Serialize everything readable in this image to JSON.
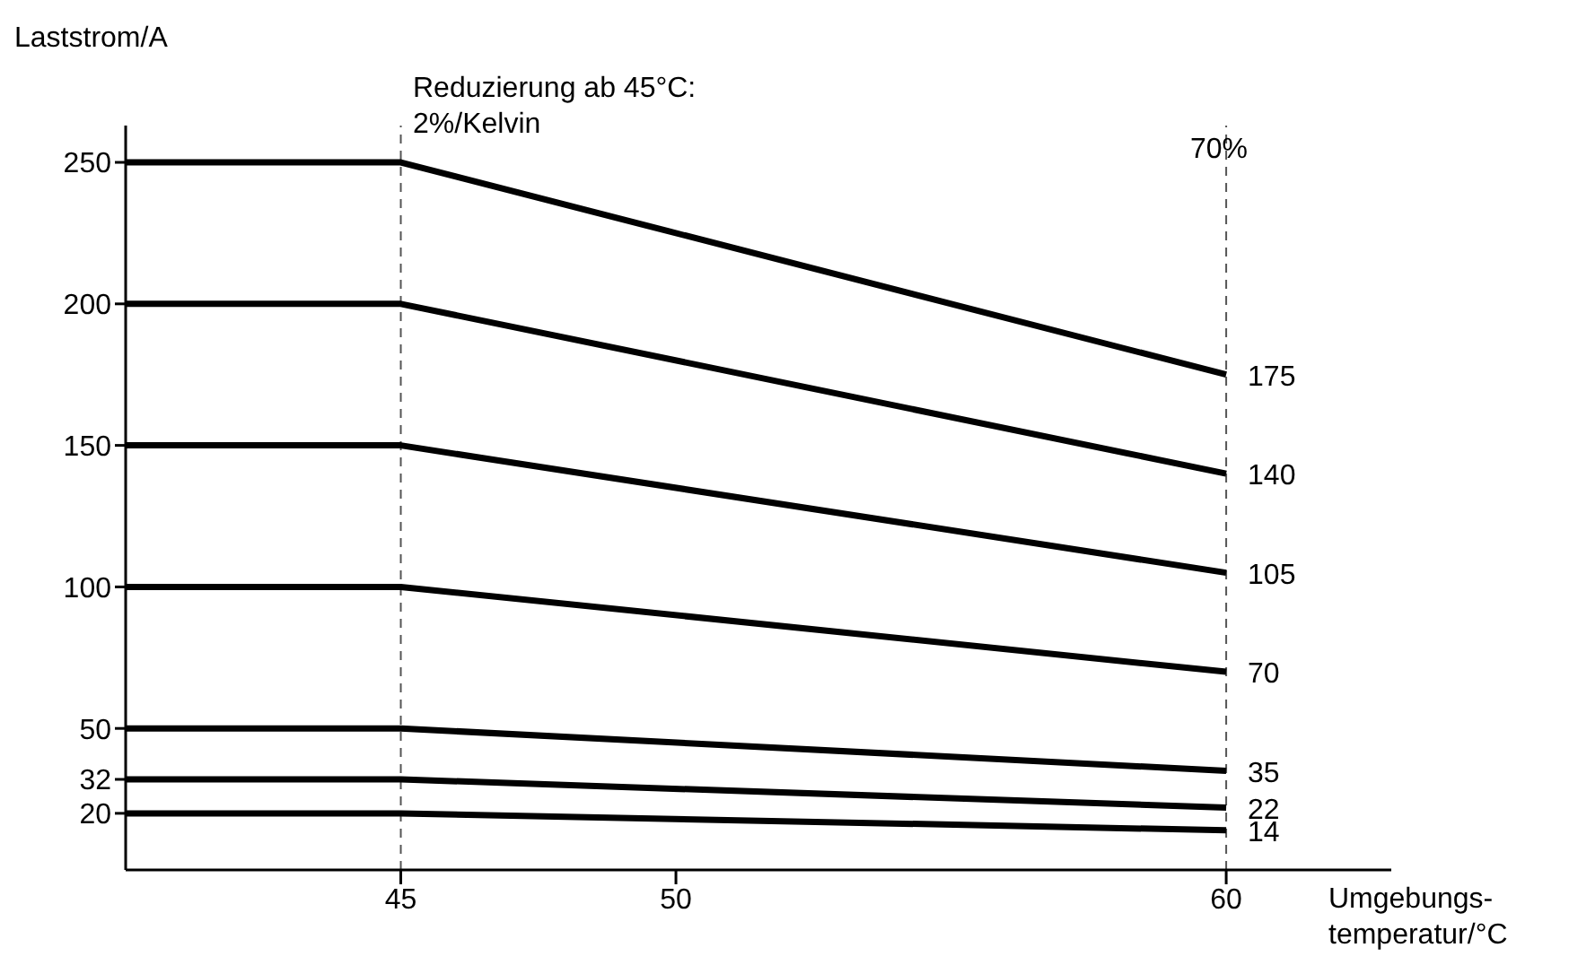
{
  "chart_data": {
    "type": "line",
    "xlabel": "Umgebungs-\ntemperatur/°C",
    "ylabel": "Laststrom/A",
    "annotations": [
      "Reduzierung ab 45°C:\n2%/Kelvin",
      "70%"
    ],
    "x": [
      40,
      45,
      60
    ],
    "series": [
      {
        "color": "#000000",
        "values": [
          250,
          250,
          175
        ],
        "value_labels": [
          null,
          null,
          "175"
        ]
      },
      {
        "color": "#000000",
        "values": [
          200,
          200,
          140
        ],
        "value_labels": [
          null,
          null,
          "140"
        ]
      },
      {
        "color": "#000000",
        "values": [
          150,
          150,
          105
        ],
        "value_labels": [
          null,
          null,
          "105"
        ]
      },
      {
        "color": "#000000",
        "values": [
          100,
          100,
          70
        ],
        "value_labels": [
          null,
          null,
          "70"
        ]
      },
      {
        "color": "#000000",
        "values": [
          50,
          50,
          35
        ],
        "value_labels": [
          null,
          null,
          "35"
        ]
      },
      {
        "color": "#000000",
        "values": [
          32,
          32,
          22
        ],
        "value_labels": [
          null,
          null,
          "22"
        ]
      },
      {
        "color": "#000000",
        "values": [
          20,
          20,
          14
        ],
        "value_labels": [
          null,
          null,
          "14"
        ]
      }
    ],
    "xlim": [
      40,
      63
    ],
    "xticks": [
      45,
      50,
      60
    ],
    "ylim": [
      0,
      263
    ],
    "yticks": [
      20,
      32,
      50,
      100,
      150,
      200,
      250
    ],
    "ref_lines": [
      {
        "axis": "x",
        "value": 45,
        "color": "#555555",
        "line_style": "dashed"
      },
      {
        "axis": "x",
        "value": 60,
        "color": "#555555",
        "line_style": "dashed"
      }
    ],
    "grid": false,
    "legend": false,
    "marker": "none",
    "line_style": "solid"
  }
}
